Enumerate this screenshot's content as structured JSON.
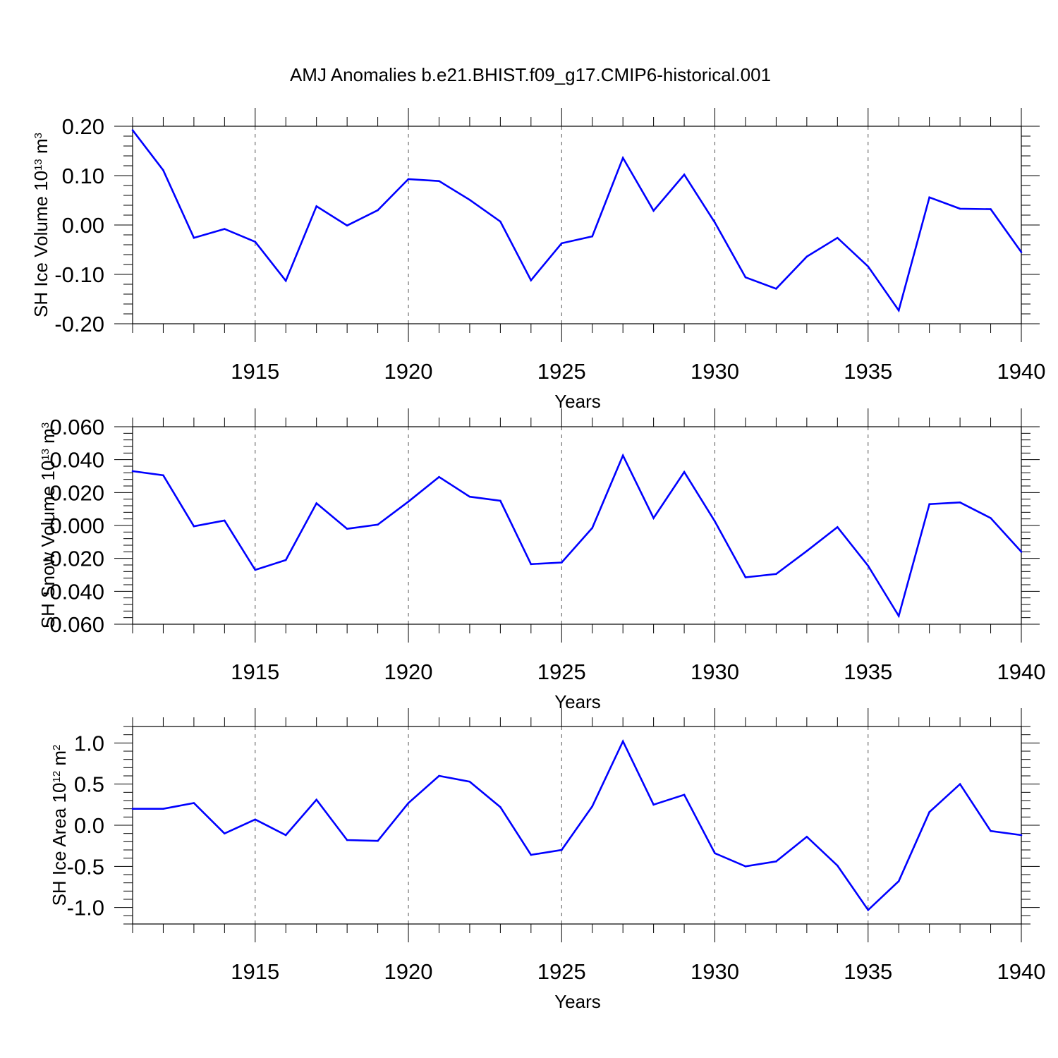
{
  "chart_data": [
    {
      "type": "line",
      "title": "AMJ Anomalies b.e21.BHIST.f09_g17.CMIP6-historical.001",
      "ylabel": {
        "main": "SH Ice Volume 10",
        "exp": "13",
        "unit": " m",
        "unit_exp": "3"
      },
      "xlabel": "Years",
      "xlim": [
        1911,
        1940
      ],
      "ylim": [
        -0.2,
        0.2
      ],
      "yticks": [
        0.2,
        0.1,
        0.0,
        -0.1,
        -0.2
      ],
      "yticklabels": [
        "0.20",
        "0.10",
        "0.00",
        "-0.10",
        "-0.20"
      ],
      "xticks": [
        1915,
        1920,
        1925,
        1930,
        1935,
        1940
      ],
      "xticklabels": [
        "1915",
        "1920",
        "1925",
        "1930",
        "1935",
        "1940"
      ],
      "line_color": "#0000ff",
      "series": [
        {
          "name": "SH Ice Volume",
          "x": [
            1911,
            1912,
            1913,
            1914,
            1915,
            1916,
            1917,
            1918,
            1919,
            1920,
            1921,
            1922,
            1923,
            1924,
            1925,
            1926,
            1927,
            1928,
            1929,
            1930,
            1931,
            1932,
            1933,
            1934,
            1935,
            1936,
            1937,
            1938,
            1939,
            1940
          ],
          "values": [
            0.192,
            0.111,
            -0.026,
            -0.008,
            -0.034,
            -0.113,
            0.038,
            -0.001,
            0.03,
            0.093,
            0.089,
            0.051,
            0.007,
            -0.112,
            -0.037,
            -0.023,
            0.136,
            0.029,
            0.102,
            0.005,
            -0.106,
            -0.129,
            -0.064,
            -0.026,
            -0.084,
            -0.173,
            0.056,
            0.033,
            0.032,
            -0.055
          ]
        }
      ]
    },
    {
      "type": "line",
      "title": "",
      "ylabel": {
        "main": "SH Snow Volume 10",
        "exp": "13",
        "unit": " m",
        "unit_exp": "3"
      },
      "xlabel": "Years",
      "xlim": [
        1911,
        1940
      ],
      "ylim": [
        -0.06,
        0.06
      ],
      "yticks": [
        0.06,
        0.04,
        0.02,
        0.0,
        -0.02,
        -0.04,
        -0.06
      ],
      "yticklabels": [
        "0.060",
        "0.040",
        "0.020",
        "0.000",
        "-0.020",
        "-0.040",
        "-0.060"
      ],
      "xticks": [
        1915,
        1920,
        1925,
        1930,
        1935,
        1940
      ],
      "xticklabels": [
        "1915",
        "1920",
        "1925",
        "1930",
        "1935",
        "1940"
      ],
      "line_color": "#0000ff",
      "series": [
        {
          "name": "SH Snow Volume",
          "x": [
            1911,
            1912,
            1913,
            1914,
            1915,
            1916,
            1917,
            1918,
            1919,
            1920,
            1921,
            1922,
            1923,
            1924,
            1925,
            1926,
            1927,
            1928,
            1929,
            1930,
            1931,
            1932,
            1933,
            1934,
            1935,
            1936,
            1937,
            1938,
            1939,
            1940
          ],
          "values": [
            0.033,
            0.0305,
            -0.0005,
            0.003,
            -0.027,
            -0.021,
            0.0135,
            -0.002,
            0.0005,
            0.0145,
            0.0295,
            0.0175,
            0.015,
            -0.0235,
            -0.0225,
            -0.0015,
            0.0425,
            0.0045,
            0.0325,
            0.0025,
            -0.0315,
            -0.0295,
            -0.0155,
            -0.001,
            -0.0245,
            -0.055,
            0.013,
            0.014,
            0.0045,
            -0.016
          ]
        }
      ]
    },
    {
      "type": "line",
      "title": "",
      "ylabel": {
        "main": "SH Ice Area 10",
        "exp": "12",
        "unit": " m",
        "unit_exp": "2"
      },
      "xlabel": "Years",
      "xlim": [
        1911,
        1940
      ],
      "ylim": [
        -1.2,
        1.2
      ],
      "yticks": [
        1.0,
        0.5,
        0.0,
        -0.5,
        -1.0
      ],
      "yticklabels": [
        "1.0",
        "0.5",
        "0.0",
        "-0.5",
        "-1.0"
      ],
      "xticks": [
        1915,
        1920,
        1925,
        1930,
        1935,
        1940
      ],
      "xticklabels": [
        "1915",
        "1920",
        "1925",
        "1930",
        "1935",
        "1940"
      ],
      "line_color": "#0000ff",
      "series": [
        {
          "name": "SH Ice Area",
          "x": [
            1911,
            1912,
            1913,
            1914,
            1915,
            1916,
            1917,
            1918,
            1919,
            1920,
            1921,
            1922,
            1923,
            1924,
            1925,
            1926,
            1927,
            1928,
            1929,
            1930,
            1931,
            1932,
            1933,
            1934,
            1935,
            1936,
            1937,
            1938,
            1939,
            1940
          ],
          "values": [
            0.2,
            0.2,
            0.27,
            -0.1,
            0.07,
            -0.12,
            0.31,
            -0.18,
            -0.19,
            0.27,
            0.6,
            0.53,
            0.22,
            -0.36,
            -0.3,
            0.23,
            1.02,
            0.25,
            0.37,
            -0.34,
            -0.5,
            -0.44,
            -0.14,
            -0.49,
            -1.03,
            -0.68,
            0.16,
            0.5,
            -0.07,
            -0.12
          ]
        }
      ]
    }
  ]
}
